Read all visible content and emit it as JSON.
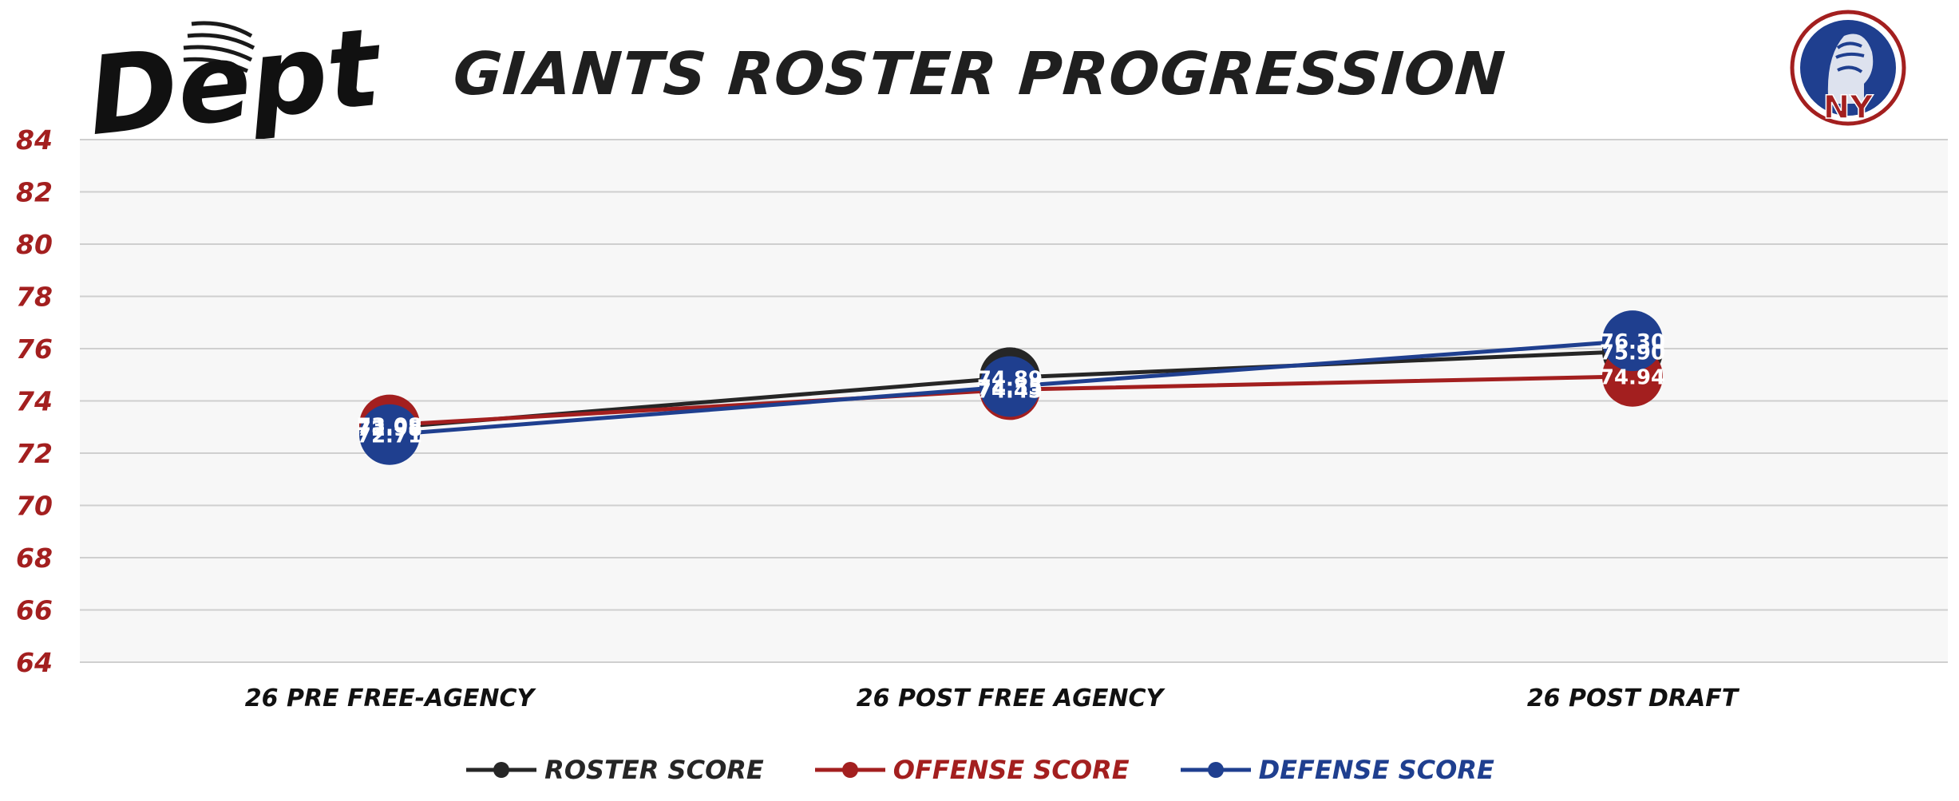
{
  "header": {
    "title": "GIANTS ROSTER PROGRESSION",
    "brand_logo_text": "Depth",
    "team_badge_text": "NY"
  },
  "colors": {
    "roster": "#262626",
    "offense": "#a31f1f",
    "defense": "#1f3f8f",
    "axis_label": "#a31f1f",
    "grid": "#cfcfcf",
    "plot_bg": "#f7f7f7"
  },
  "chart_data": {
    "type": "line",
    "title": "GIANTS ROSTER PROGRESSION",
    "xlabel": "",
    "ylabel": "",
    "categories": [
      "26 PRE FREE-AGENCY",
      "26 POST FREE AGENCY",
      "26 POST DRAFT"
    ],
    "ylim": [
      64,
      84
    ],
    "yticks": [
      64,
      66,
      68,
      70,
      72,
      74,
      76,
      78,
      80,
      82,
      84
    ],
    "grid": true,
    "legend_position": "bottom",
    "series": [
      {
        "name": "ROSTER SCORE",
        "key": "roster",
        "values": [
          72.98,
          74.89,
          75.9
        ],
        "labels": [
          "72.98",
          "74.89",
          "75.90"
        ]
      },
      {
        "name": "OFFENSE SCORE",
        "key": "offense",
        "values": [
          73.08,
          74.43,
          74.94
        ],
        "labels": [
          "73.08",
          "74.43",
          "74.94"
        ]
      },
      {
        "name": "DEFENSE SCORE",
        "key": "defense",
        "values": [
          72.71,
          74.55,
          76.3
        ],
        "labels": [
          "72.71",
          "74.55",
          "76.30"
        ]
      }
    ]
  }
}
